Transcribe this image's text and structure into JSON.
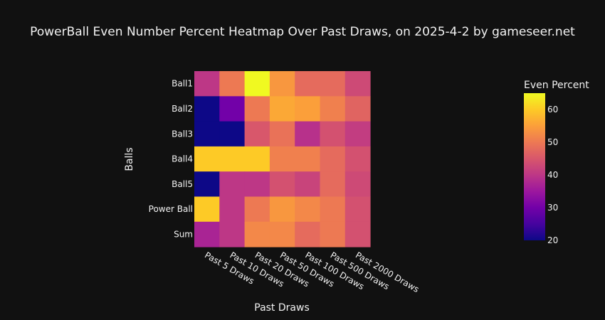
{
  "chart_data": {
    "type": "heatmap",
    "title": "PowerBall Even Number Percent Heatmap Over Past Draws, on 2025-4-2 by gameseer.net",
    "xlabel": "Past Draws",
    "ylabel": "Balls",
    "x": [
      "Past 5 Draws",
      "Past 10 Draws",
      "Past 20 Draws",
      "Past 50 Draws",
      "Past 100 Draws",
      "Past 500 Draws",
      "Past 2000 Draws"
    ],
    "y": [
      "Ball1",
      "Ball2",
      "Ball3",
      "Ball4",
      "Ball5",
      "Power Ball",
      "Sum"
    ],
    "z": [
      [
        40,
        50,
        65,
        54,
        48,
        48,
        43
      ],
      [
        20,
        30,
        50,
        56,
        55,
        51,
        47
      ],
      [
        20,
        20,
        45,
        49,
        39,
        44,
        41
      ],
      [
        60,
        60,
        60,
        51,
        51,
        48,
        44
      ],
      [
        20,
        40,
        40,
        44,
        42,
        48,
        43
      ],
      [
        60,
        40,
        50,
        54,
        52,
        50,
        44
      ],
      [
        37,
        40,
        52,
        52,
        48,
        50,
        44
      ]
    ],
    "colorbar": {
      "title": "Even Percent",
      "ticks": [
        20,
        30,
        40,
        50,
        60
      ],
      "range": [
        20,
        65
      ]
    },
    "colorscale": "plasma"
  }
}
